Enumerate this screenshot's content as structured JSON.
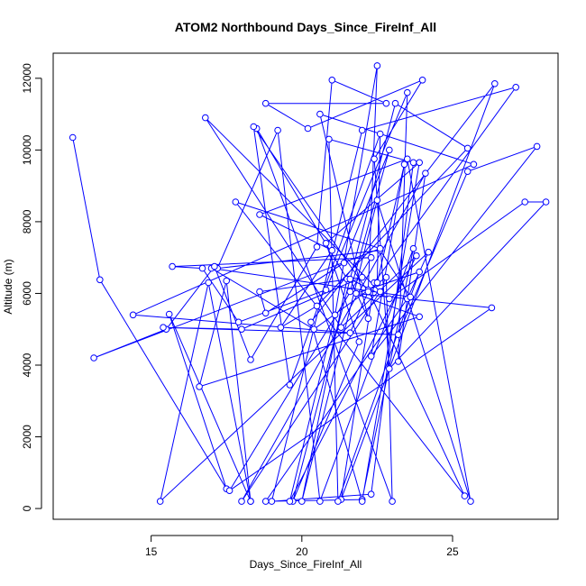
{
  "chart_data": {
    "type": "line",
    "title": "ATOM2 Northbound Days_Since_FireInf_All",
    "xlabel": "Days_Since_FireInf_All",
    "ylabel": "Altitude (m)",
    "xlim": [
      11.75,
      28.5
    ],
    "ylim": [
      -300,
      12700
    ],
    "xticks": [
      15,
      20,
      25
    ],
    "xtick_labels": [
      "15",
      "20",
      "25"
    ],
    "yticks": [
      0,
      2000,
      4000,
      6000,
      8000,
      10000,
      12000
    ],
    "ytick_labels": [
      "0",
      "2000",
      "4000",
      "6000",
      "8000",
      "10000",
      "12000"
    ],
    "grid": false,
    "series": [
      {
        "color": "#0000ff",
        "marker": "open-circle",
        "x": [
          12.4,
          13.3,
          17.5,
          15.6,
          18.3,
          16.9,
          15.3,
          24.2,
          23.5,
          18.8,
          22.0,
          23.7,
          20.6,
          19.2,
          17.2,
          22.6,
          23.6,
          17.0,
          20.4,
          22.8,
          23.0,
          18.5,
          21.5,
          20.0,
          22.5,
          25.6,
          23.5,
          18.6,
          21.0,
          19.3,
          20.5,
          25.5,
          23.1,
          19.7,
          21.9,
          20.8,
          23.9,
          22.0,
          20.3,
          26.4,
          21.3,
          22.4,
          27.1,
          22.0,
          19.0,
          22.3,
          23.7,
          20.9,
          21.2,
          23.9,
          21.8,
          26.3,
          17.6,
          22.3,
          15.7,
          16.7,
          17.9,
          20.8,
          23.5,
          23.2,
          24.1,
          18.0,
          22.6,
          16.8,
          21.3,
          23.8,
          19.6,
          21.1,
          22.5,
          22.2,
          25.4,
          17.8,
          22.6,
          13.1,
          15.5,
          17.1,
          18.3,
          20.5,
          21.0,
          22.8,
          18.8,
          20.2,
          24.0,
          22.4,
          22.9,
          28.1,
          27.4,
          22.9,
          21.6,
          22.2,
          20.6,
          25.7,
          14.4,
          21.6,
          22.2,
          18.4,
          19.6,
          22.6,
          22.5,
          23.4,
          22.3,
          27.8,
          25.5,
          23.2,
          15.4,
          18.0,
          22.0,
          18.6,
          18.8,
          21.4,
          22.9,
          21.6,
          23.9,
          16.6,
          17.5,
          18.3
        ],
        "y": [
          10350,
          6380,
          550,
          5420,
          200,
          6300,
          200,
          7150,
          5850,
          200,
          250,
          7250,
          200,
          10550,
          6700,
          7200,
          5900,
          6700,
          5000,
          6450,
          200,
          10600,
          6400,
          200,
          8600,
          200,
          9750,
          8200,
          7200,
          5050,
          5650,
          10050,
          11300,
          200,
          4650,
          7400,
          9650,
          200,
          5200,
          11850,
          250,
          6300,
          11750,
          10550,
          200,
          400,
          9650,
          10300,
          200,
          6600,
          6000,
          5600,
          500,
          7000,
          6750,
          6700,
          5200,
          6100,
          11600,
          4100,
          9350,
          200,
          6050,
          10900,
          5050,
          7050,
          200,
          5400,
          12350,
          6100,
          350,
          8550,
          7250,
          4200,
          5000,
          6750,
          4150,
          7300,
          11950,
          11300,
          11300,
          10600,
          11950,
          9750,
          3900,
          8550,
          8550,
          5850,
          6400,
          5300,
          11000,
          9600,
          5400,
          4900,
          6050,
          10650,
          3450,
          10450,
          6300,
          9600,
          4250,
          10100,
          9400,
          4850,
          5050,
          5000,
          6450,
          6050,
          5450,
          6850,
          10000,
          6050,
          5350,
          3400,
          6350,
          200
        ]
      }
    ]
  }
}
